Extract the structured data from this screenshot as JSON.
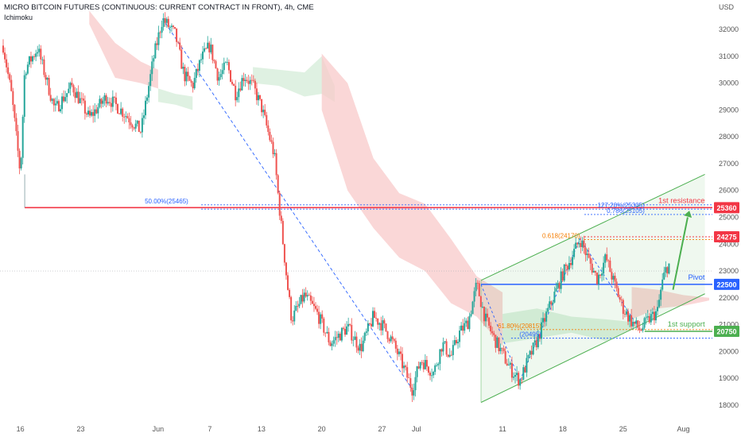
{
  "header": {
    "title": "MICRO BITCOIN FUTURES (CONTINUOUS: CURRENT CONTRACT IN FRONT), 4h, CME",
    "indicator": "Ichimoku",
    "currency": "USD"
  },
  "colors": {
    "up": "#26a69a",
    "down": "#ef5350",
    "resistance": "#f23645",
    "pivot": "#2962ff",
    "support": "#4caf50",
    "fib": "#f57c00",
    "channel": "#4caf50",
    "cloud_red": "#f8c9c9",
    "cloud_green": "#d4ecd8"
  },
  "chart_data": {
    "type": "candlestick",
    "ylim": [
      17700,
      33100
    ],
    "y_ticks": [
      18000,
      19000,
      20000,
      21000,
      22000,
      23000,
      24000,
      25000,
      26000,
      27000,
      28000,
      29000,
      30000,
      31000,
      32000
    ],
    "x_ticks": [
      {
        "label": "16",
        "x": 2
      },
      {
        "label": "23",
        "x": 9
      },
      {
        "label": "Jun",
        "x": 18
      },
      {
        "label": "7",
        "x": 24
      },
      {
        "label": "13",
        "x": 30
      },
      {
        "label": "20",
        "x": 37
      },
      {
        "label": "27",
        "x": 44
      },
      {
        "label": "Jul",
        "x": 48
      },
      {
        "label": "11",
        "x": 58
      },
      {
        "label": "18",
        "x": 65
      },
      {
        "label": "25",
        "x": 72
      },
      {
        "label": "Aug",
        "x": 79
      }
    ],
    "price_path": [
      [
        0,
        31400
      ],
      [
        1,
        29500
      ],
      [
        2,
        26600
      ],
      [
        2.5,
        30500
      ],
      [
        4,
        31300
      ],
      [
        6,
        29000
      ],
      [
        8,
        29900
      ],
      [
        10,
        28700
      ],
      [
        12,
        29500
      ],
      [
        14,
        28900
      ],
      [
        16,
        28200
      ],
      [
        17.5,
        31000
      ],
      [
        18.5,
        32400
      ],
      [
        20,
        31800
      ],
      [
        21,
        30300
      ],
      [
        22,
        29900
      ],
      [
        23,
        30900
      ],
      [
        24,
        31400
      ],
      [
        25,
        30200
      ],
      [
        26,
        30700
      ],
      [
        27,
        29600
      ],
      [
        28,
        30300
      ],
      [
        29,
        29900
      ],
      [
        30,
        29100
      ],
      [
        31.5,
        27300
      ],
      [
        32,
        25600
      ],
      [
        33,
        22500
      ],
      [
        33.5,
        21200
      ],
      [
        35,
        22100
      ],
      [
        36.5,
        21400
      ],
      [
        38,
        20300
      ],
      [
        40,
        20900
      ],
      [
        41.5,
        20100
      ],
      [
        43,
        21300
      ],
      [
        44,
        21000
      ],
      [
        45,
        20500
      ],
      [
        46,
        19800
      ],
      [
        47.5,
        18600
      ],
      [
        48.5,
        19700
      ],
      [
        50,
        19200
      ],
      [
        51,
        20300
      ],
      [
        52,
        19800
      ],
      [
        53,
        20700
      ],
      [
        54,
        21100
      ],
      [
        55,
        22500
      ],
      [
        56,
        21200
      ],
      [
        57,
        20500
      ],
      [
        58,
        19900
      ],
      [
        59,
        19300
      ],
      [
        60,
        18900
      ],
      [
        61,
        19700
      ],
      [
        62,
        20400
      ],
      [
        63,
        21300
      ],
      [
        64,
        22100
      ],
      [
        65,
        22900
      ],
      [
        66,
        23500
      ],
      [
        67,
        24200
      ],
      [
        68,
        23400
      ],
      [
        69,
        22700
      ],
      [
        70,
        23500
      ],
      [
        71,
        22500
      ],
      [
        72,
        21600
      ],
      [
        73,
        21100
      ],
      [
        74,
        20800
      ],
      [
        75,
        21200
      ],
      [
        76,
        21500
      ],
      [
        76.5,
        22500
      ],
      [
        77,
        23100
      ],
      [
        77.5,
        23300
      ]
    ],
    "horizontal_levels": [
      {
        "name": "1st resistance",
        "value": 25360,
        "label": "25360",
        "style": "resistance"
      },
      {
        "name": "24275",
        "value": 24275,
        "label": "24275",
        "style": "resistance-dotted"
      },
      {
        "name": "Pivot",
        "value": 22500,
        "label": "22500",
        "style": "pivot"
      },
      {
        "name": "1st support",
        "value": 20750,
        "label": "20750",
        "style": "support"
      }
    ],
    "fib_levels": [
      {
        "label": "50.00%(25465)",
        "value": 25465
      },
      {
        "label": "127.20%(25305)",
        "value": 25305
      },
      {
        "label": "0.786(25105)",
        "value": 25105
      },
      {
        "label": "0.618(24170)",
        "value": 24170
      },
      {
        "label": "61.80%(20815)",
        "value": 20815
      },
      {
        "label": "(20495)",
        "value": 20495
      }
    ],
    "annotations": {
      "resistance": "1st resistance",
      "pivot": "Pivot",
      "support": "1st support"
    },
    "current_price": 23000
  }
}
